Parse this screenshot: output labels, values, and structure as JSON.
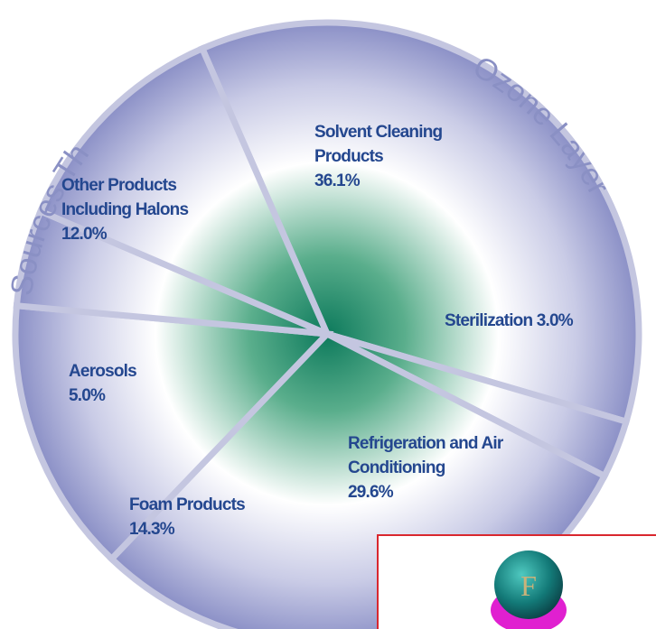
{
  "chart_data": {
    "type": "pie",
    "title_parts": [
      "Sources Th",
      "Ozone Layer"
    ],
    "categories": [
      "Solvent Cleaning Products",
      "Sterilization",
      "Refrigeration and Air Conditioning",
      "Foam Products",
      "Aerosols",
      "Other Products Including Halons"
    ],
    "values": [
      36.1,
      3.0,
      29.6,
      14.3,
      5.0,
      12.0
    ],
    "value_labels": [
      "36.1%",
      "3.0%",
      "29.6%",
      "14.3%",
      "5.0%",
      "12.0%"
    ]
  },
  "overlay": {
    "icon_letter": "F"
  }
}
